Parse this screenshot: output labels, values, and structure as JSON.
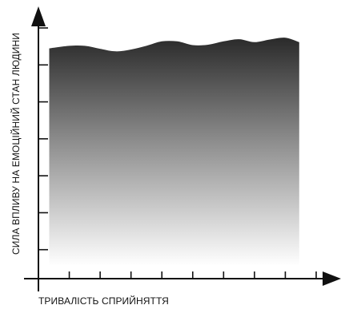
{
  "chart_data": {
    "type": "area",
    "title": "",
    "xlabel": "ТРИВАЛІСТЬ СПРИЙНЯТТЯ",
    "ylabel": "СИЛА ВПЛИВУ НА ЕМОЦІЙНИЙ СТАН ЛЮДИНИ",
    "xlim": [
      0,
      9
    ],
    "ylim": [
      0,
      7
    ],
    "grid": false,
    "legend": "none",
    "x_ticks": 9,
    "y_ticks": 7,
    "series": [
      {
        "x": [
          0.35,
          1.0,
          1.5,
          2.0,
          2.5,
          3.0,
          3.5,
          4.0,
          4.5,
          5.0,
          5.5,
          6.0,
          6.5,
          7.0,
          7.5,
          8.0,
          8.45
        ],
        "values": [
          6.23,
          6.3,
          6.3,
          6.22,
          6.15,
          6.2,
          6.3,
          6.42,
          6.42,
          6.32,
          6.33,
          6.42,
          6.48,
          6.4,
          6.47,
          6.52,
          6.4
        ]
      }
    ],
    "colors": {
      "axis": "#111111",
      "area_top": "#2a2a2a",
      "area_bottom": "#ffffff"
    }
  }
}
